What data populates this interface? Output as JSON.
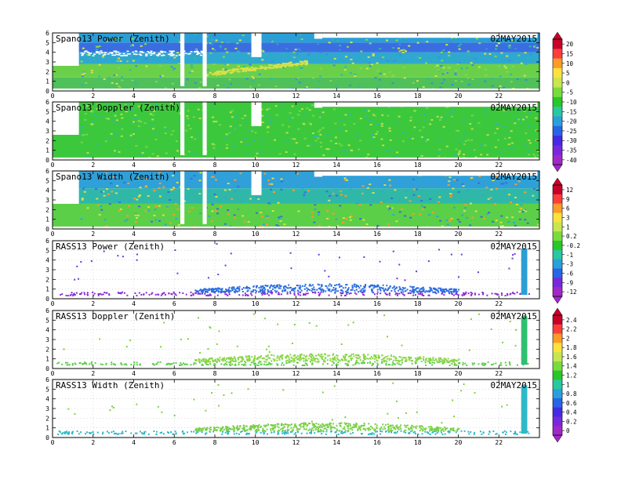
{
  "figure": {
    "date": "02MAY2015",
    "x_ticks": [
      0,
      2,
      4,
      6,
      8,
      10,
      12,
      14,
      16,
      18,
      20,
      22
    ],
    "xlim": [
      0,
      24
    ],
    "y_ticks": [
      0,
      1,
      2,
      3,
      4,
      5,
      6
    ],
    "ylim": [
      0,
      6
    ]
  },
  "colorbars": [
    {
      "labels": [
        "20",
        "15",
        "10",
        "5",
        "0",
        "-5",
        "-10",
        "-15",
        "-20",
        "-25",
        "-30",
        "-35",
        "-40"
      ],
      "colors": [
        "#c80028",
        "#ff3c3c",
        "#ff9a28",
        "#ffe13c",
        "#c8e650",
        "#78dc3c",
        "#28c828",
        "#28c8a0",
        "#28a0dc",
        "#2864e6",
        "#4628e6",
        "#7828dc",
        "#a028c8"
      ]
    },
    {
      "labels": [
        "12",
        "9",
        "6",
        "3",
        "1",
        "0.2",
        "-0.2",
        "-1",
        "-3",
        "-6",
        "-9",
        "-12"
      ],
      "colors": [
        "#c80028",
        "#ff3c3c",
        "#ff9a28",
        "#ffe13c",
        "#c8e650",
        "#78dc3c",
        "#28c828",
        "#28c8a0",
        "#28a0dc",
        "#2864e6",
        "#7828dc",
        "#a028c8"
      ]
    },
    {
      "labels": [
        "2.4",
        "2.2",
        "2",
        "1.8",
        "1.6",
        "1.4",
        "1.2",
        "1",
        "0.8",
        "0.6",
        "0.4",
        "0.2",
        "0"
      ],
      "colors": [
        "#c80028",
        "#ff3c3c",
        "#ff9a28",
        "#ffe13c",
        "#c8e650",
        "#78dc3c",
        "#28c828",
        "#28c8a0",
        "#28a0dc",
        "#2864e6",
        "#4628e6",
        "#7828dc",
        "#a028c8"
      ]
    }
  ],
  "chart_data": [
    {
      "type": "heatmap",
      "title": "Spano13 Power (Zenith)",
      "date": "02MAY2015",
      "xlim": [
        0,
        24
      ],
      "ylim": [
        0,
        6
      ],
      "gaps_x": [
        [
          0,
          1.3
        ],
        [
          6.3,
          6.5
        ],
        [
          7.4,
          7.6
        ],
        [
          9.8,
          10.3
        ],
        [
          12.9,
          13.3
        ]
      ],
      "bands": [
        {
          "y": [
            0,
            1.4
          ],
          "color": "#4fc05a"
        },
        {
          "y": [
            1.4,
            2.8
          ],
          "color": "#6ad04a"
        },
        {
          "y": [
            2.8,
            4.0
          ],
          "color": "#2fa8d0"
        },
        {
          "y": [
            4.0,
            5.0
          ],
          "color": "#3a6ee0"
        },
        {
          "y": [
            5.0,
            6.0
          ],
          "color": "#2a9fd6"
        }
      ]
    },
    {
      "type": "heatmap",
      "title": "Spano13 Doppler (Zenith)",
      "date": "02MAY2015",
      "xlim": [
        0,
        24
      ],
      "ylim": [
        0,
        6
      ],
      "gaps_x": [
        [
          0,
          1.3
        ],
        [
          6.3,
          6.5
        ],
        [
          7.4,
          7.6
        ],
        [
          9.8,
          10.3
        ],
        [
          12.9,
          13.3
        ]
      ],
      "bands": [
        {
          "y": [
            0,
            6
          ],
          "color": "#3cc83c"
        }
      ]
    },
    {
      "type": "heatmap",
      "title": "Spano13 Width (Zenith)",
      "date": "02MAY2015",
      "xlim": [
        0,
        24
      ],
      "ylim": [
        0,
        6
      ],
      "gaps_x": [
        [
          0,
          1.3
        ],
        [
          6.3,
          6.5
        ],
        [
          7.4,
          7.6
        ],
        [
          9.8,
          10.3
        ],
        [
          12.9,
          13.3
        ]
      ],
      "bands": [
        {
          "y": [
            0,
            2.6
          ],
          "color": "#5ccf48"
        },
        {
          "y": [
            2.6,
            4.2
          ],
          "color": "#2fb8a8"
        },
        {
          "y": [
            4.2,
            6.0
          ],
          "color": "#2fa0d8"
        }
      ]
    },
    {
      "type": "heatmap",
      "title": "RASS13 Power (Zenith)",
      "date": "02MAY2015",
      "xlim": [
        0,
        24
      ],
      "ylim": [
        0,
        6
      ],
      "bands": [
        {
          "x": [
            0.2,
            23.5
          ],
          "y": [
            0.4,
            0.75
          ],
          "color": "#8a2ad6"
        },
        {
          "x": [
            7.0,
            20.0
          ],
          "y": [
            0.75,
            1.6
          ],
          "color": "#2a6ee0"
        }
      ],
      "column": {
        "x": [
          23.1,
          23.4
        ],
        "y": [
          0.4,
          5.2
        ],
        "color": "#2a9fd6"
      },
      "scatter_color": "#6a38d8"
    },
    {
      "type": "heatmap",
      "title": "RASS13 Doppler (Zenith)",
      "date": "02MAY2015",
      "xlim": [
        0,
        24
      ],
      "ylim": [
        0,
        6
      ],
      "bands": [
        {
          "x": [
            0.2,
            23.5
          ],
          "y": [
            0.4,
            0.75
          ],
          "color": "#5ccf48"
        },
        {
          "x": [
            7.0,
            20.0
          ],
          "y": [
            0.75,
            1.6
          ],
          "color": "#8ad648"
        }
      ],
      "column": {
        "x": [
          23.1,
          23.4
        ],
        "y": [
          0.4,
          5.4
        ],
        "color": "#2fbf70"
      },
      "scatter_color": "#7fd040"
    },
    {
      "type": "heatmap",
      "title": "RASS13 Width (Zenith)",
      "date": "02MAY2015",
      "xlim": [
        0,
        24
      ],
      "ylim": [
        0,
        6
      ],
      "bands": [
        {
          "x": [
            0.2,
            23.5
          ],
          "y": [
            0.4,
            0.75
          ],
          "color": "#2fb8c8"
        },
        {
          "x": [
            7.0,
            20.0
          ],
          "y": [
            0.75,
            1.6
          ],
          "color": "#7ad048"
        }
      ],
      "column": {
        "x": [
          23.1,
          23.4
        ],
        "y": [
          0.4,
          5.4
        ],
        "color": "#2fb8c8"
      },
      "scatter_color": "#7fd040"
    }
  ]
}
